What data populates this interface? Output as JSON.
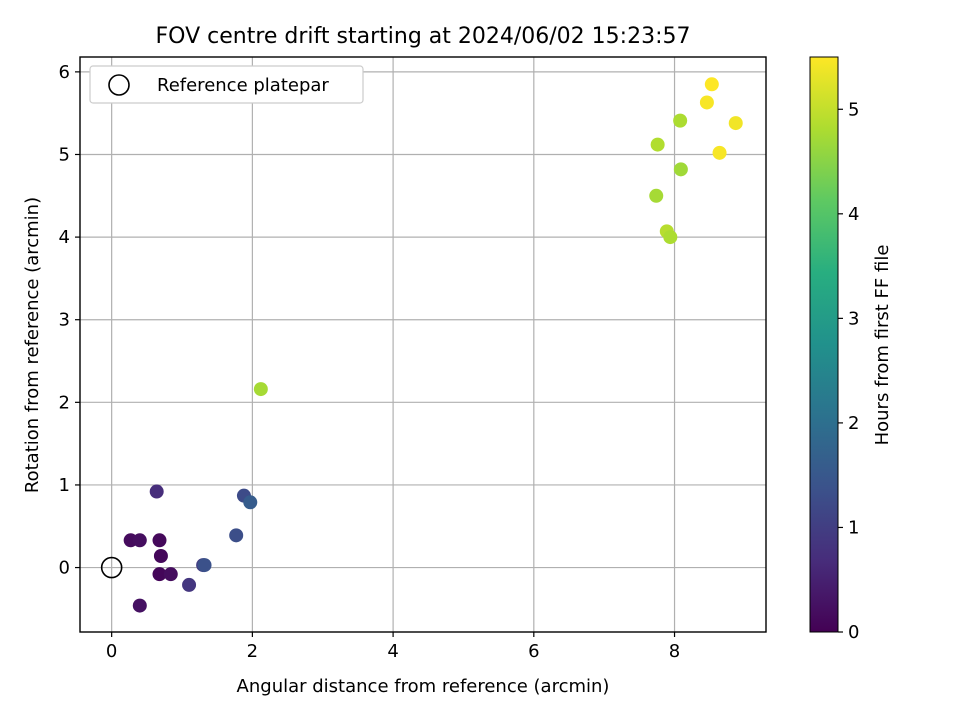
{
  "chart_data": {
    "type": "scatter",
    "title": "FOV centre drift starting at 2024/06/02 15:23:57",
    "xlabel": "Angular distance from reference (arcmin)",
    "ylabel": "Rotation from reference (arcmin)",
    "xlim": [
      -0.45,
      9.3
    ],
    "ylim": [
      -0.78,
      6.18
    ],
    "xticks": [
      0,
      2,
      4,
      6,
      8
    ],
    "yticks": [
      0,
      1,
      2,
      3,
      4,
      5,
      6
    ],
    "grid": true,
    "legend": {
      "position": "top-left",
      "entries": [
        {
          "label": "Reference platepar",
          "marker": "open-circle",
          "x": 0,
          "y": 0
        }
      ]
    },
    "colorbar": {
      "label": "Hours from first FF file",
      "colormap": "viridis",
      "range": [
        0,
        5.5
      ],
      "ticks": [
        0,
        1,
        2,
        3,
        4,
        5
      ]
    },
    "points": [
      {
        "x": 0.27,
        "y": 0.33,
        "hours": 0.15
      },
      {
        "x": 0.4,
        "y": 0.33,
        "hours": 0.2
      },
      {
        "x": 0.68,
        "y": 0.33,
        "hours": 0.12
      },
      {
        "x": 0.7,
        "y": 0.14,
        "hours": 0.1
      },
      {
        "x": 0.68,
        "y": -0.08,
        "hours": 0.08
      },
      {
        "x": 0.84,
        "y": -0.08,
        "hours": 0.18
      },
      {
        "x": 0.4,
        "y": -0.46,
        "hours": 0.25
      },
      {
        "x": 0.64,
        "y": 0.92,
        "hours": 0.7
      },
      {
        "x": 1.1,
        "y": -0.21,
        "hours": 0.85
      },
      {
        "x": 1.3,
        "y": 0.03,
        "hours": 1.0
      },
      {
        "x": 1.32,
        "y": 0.03,
        "hours": 1.35
      },
      {
        "x": 1.77,
        "y": 0.39,
        "hours": 1.3
      },
      {
        "x": 1.88,
        "y": 0.87,
        "hours": 1.25
      },
      {
        "x": 1.97,
        "y": 0.79,
        "hours": 1.6
      },
      {
        "x": 2.12,
        "y": 2.16,
        "hours": 4.75
      },
      {
        "x": 7.74,
        "y": 4.5,
        "hours": 4.75
      },
      {
        "x": 7.76,
        "y": 5.12,
        "hours": 4.85
      },
      {
        "x": 7.89,
        "y": 4.07,
        "hours": 4.9
      },
      {
        "x": 7.94,
        "y": 4.0,
        "hours": 4.8
      },
      {
        "x": 8.08,
        "y": 5.41,
        "hours": 4.8
      },
      {
        "x": 8.09,
        "y": 4.82,
        "hours": 4.7
      },
      {
        "x": 8.46,
        "y": 5.63,
        "hours": 5.45
      },
      {
        "x": 8.53,
        "y": 5.85,
        "hours": 5.5
      },
      {
        "x": 8.64,
        "y": 5.02,
        "hours": 5.45
      },
      {
        "x": 8.87,
        "y": 5.38,
        "hours": 5.4
      }
    ]
  }
}
